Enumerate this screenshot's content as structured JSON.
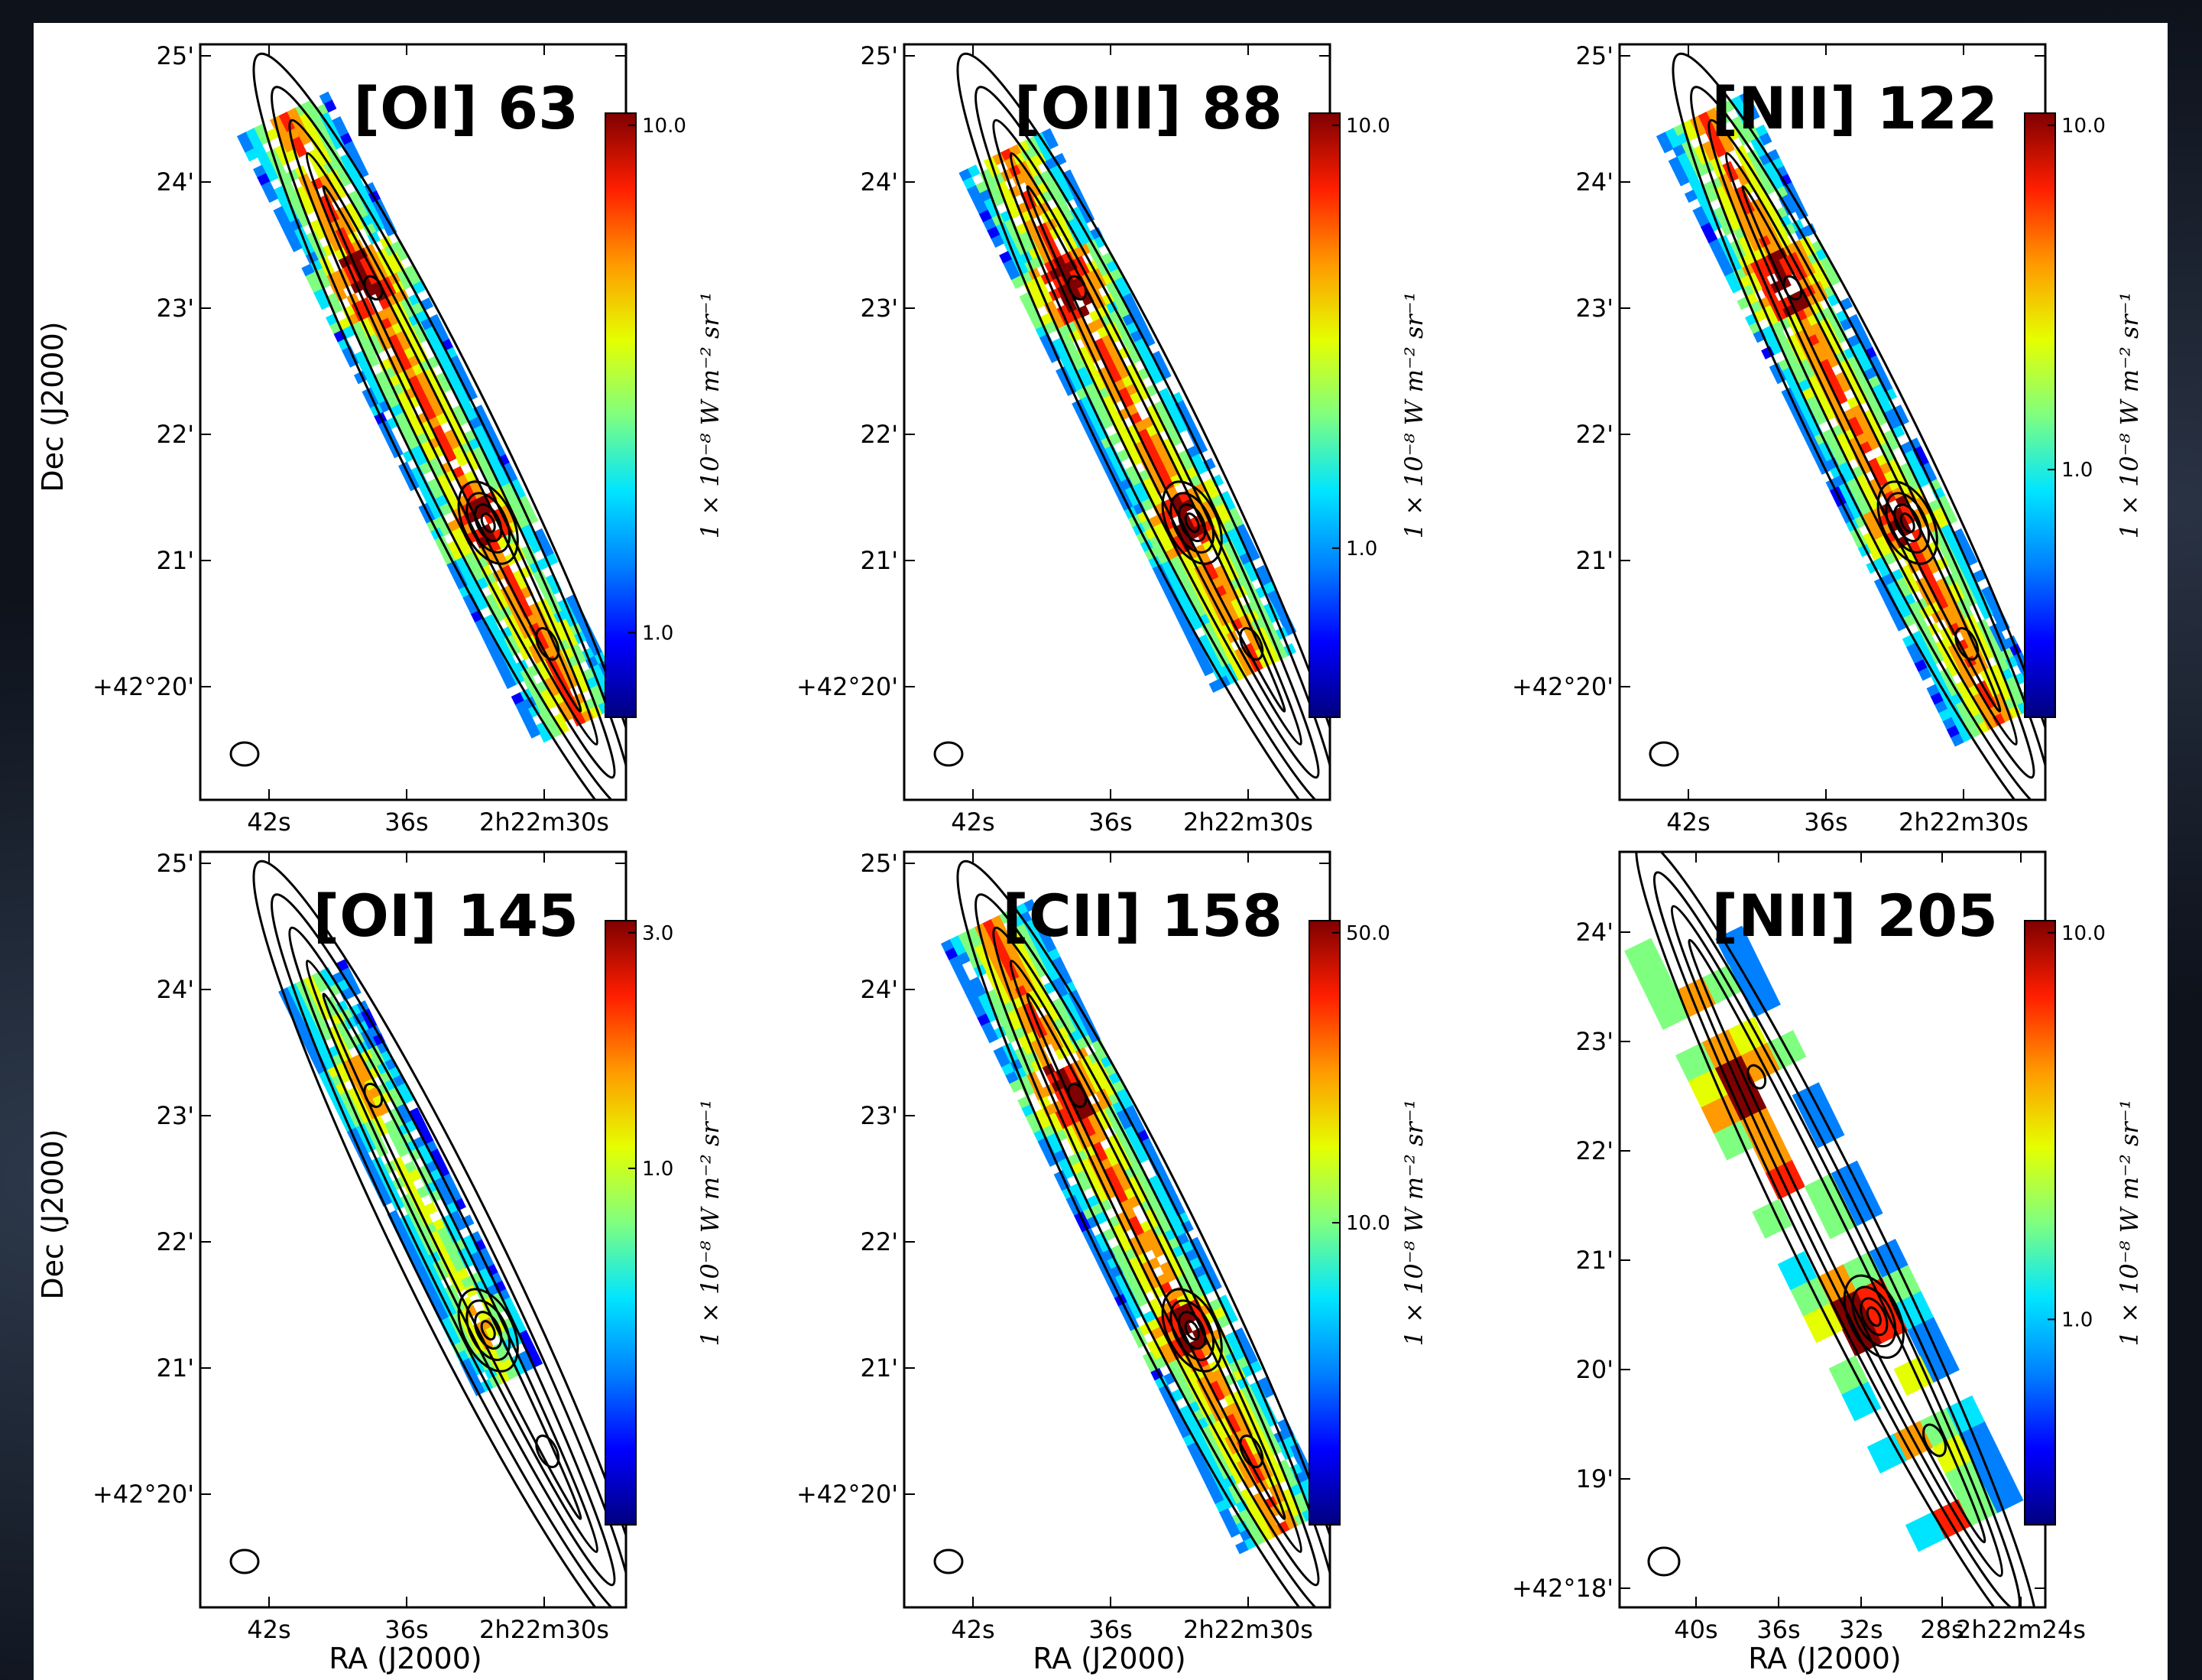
{
  "figure": {
    "panels": [
      {
        "title": "[OI] 63",
        "colorbar": {
          "ticks": [
            "10.0",
            "1.0"
          ],
          "tick_fracs": [
            0.02,
            0.86
          ],
          "label": "1 × 10⁻⁸ W m⁻² sr⁻¹"
        },
        "x_ticks": [
          "42s",
          "36s",
          "2h22m30s"
        ],
        "y_ticks": [
          "25'",
          "24'",
          "23'",
          "22'",
          "21'",
          "+42°20'"
        ],
        "x_label": "",
        "y_label": "Dec (J2000)",
        "layout": "standard"
      },
      {
        "title": "[OIII] 88",
        "colorbar": {
          "ticks": [
            "10.0",
            "1.0"
          ],
          "tick_fracs": [
            0.02,
            0.72
          ],
          "label": "1 × 10⁻⁸ W m⁻² sr⁻¹"
        },
        "x_ticks": [
          "42s",
          "36s",
          "2h22m30s"
        ],
        "y_ticks": [
          "25'",
          "24'",
          "23'",
          "22'",
          "21'",
          "+42°20'"
        ],
        "x_label": "",
        "y_label": "",
        "layout": "standard"
      },
      {
        "title": "[NII] 122",
        "colorbar": {
          "ticks": [
            "10.0",
            "1.0"
          ],
          "tick_fracs": [
            0.02,
            0.59
          ],
          "label": "1 × 10⁻⁸ W m⁻² sr⁻¹"
        },
        "x_ticks": [
          "42s",
          "36s",
          "2h22m30s"
        ],
        "y_ticks": [
          "25'",
          "24'",
          "23'",
          "22'",
          "21'",
          "+42°20'"
        ],
        "x_label": "",
        "y_label": "",
        "layout": "standard"
      },
      {
        "title": "[OI] 145",
        "colorbar": {
          "ticks": [
            "3.0",
            "1.0"
          ],
          "tick_fracs": [
            0.02,
            0.41
          ],
          "label": "1 × 10⁻⁸ W m⁻² sr⁻¹"
        },
        "x_ticks": [
          "42s",
          "36s",
          "2h22m30s"
        ],
        "y_ticks": [
          "25'",
          "24'",
          "23'",
          "22'",
          "21'",
          "+42°20'"
        ],
        "x_label": "RA (J2000)",
        "y_label": "Dec (J2000)",
        "layout": "standard"
      },
      {
        "title": "[CII] 158",
        "colorbar": {
          "ticks": [
            "50.0",
            "10.0"
          ],
          "tick_fracs": [
            0.02,
            0.5
          ],
          "label": "1 × 10⁻⁸ W m⁻² sr⁻¹"
        },
        "x_ticks": [
          "42s",
          "36s",
          "2h22m30s"
        ],
        "y_ticks": [
          "25'",
          "24'",
          "23'",
          "22'",
          "21'",
          "+42°20'"
        ],
        "x_label": "RA (J2000)",
        "y_label": "",
        "layout": "standard"
      },
      {
        "title": "[NII] 205",
        "colorbar": {
          "ticks": [
            "10.0",
            "1.0"
          ],
          "tick_fracs": [
            0.02,
            0.66
          ],
          "label": "1 × 10⁻⁸ W m⁻² sr⁻¹"
        },
        "x_ticks": [
          "40s",
          "36s",
          "32s",
          "28s",
          "2h22m24s"
        ],
        "y_ticks": [
          "24'",
          "23'",
          "22'",
          "21'",
          "20'",
          "19'",
          "+42°18'"
        ],
        "x_label": "RA (J2000)",
        "y_label": "",
        "layout": "zoomed"
      }
    ],
    "colormap": [
      "#00007f",
      "#0000ff",
      "#0080ff",
      "#00e5ff",
      "#7fff7f",
      "#e5ff00",
      "#ff9a00",
      "#ff1e00",
      "#7f0000"
    ]
  }
}
